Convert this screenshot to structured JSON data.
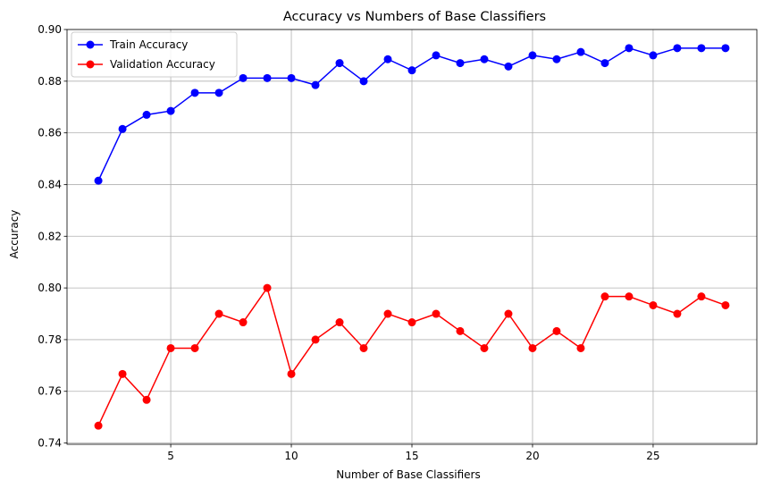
{
  "chart_data": {
    "type": "line",
    "title": "Accuracy vs Numbers of Base Classifiers",
    "xlabel": "Number of Base Classifiers",
    "ylabel": "Accuracy",
    "x": [
      2,
      3,
      4,
      5,
      6,
      7,
      8,
      9,
      10,
      11,
      12,
      13,
      14,
      15,
      16,
      17,
      18,
      19,
      20,
      21,
      22,
      23,
      24,
      25,
      26,
      27,
      28
    ],
    "xlim": [
      0.7,
      29.3
    ],
    "ylim": [
      0.7395,
      0.9
    ],
    "xticks": [
      5,
      10,
      15,
      20,
      25
    ],
    "yticks": [
      0.74,
      0.76,
      0.78,
      0.8,
      0.82,
      0.84,
      0.86,
      0.88,
      0.9
    ],
    "xtick_labels": [
      "5",
      "10",
      "15",
      "20",
      "25"
    ],
    "ytick_labels": [
      "0.74",
      "0.76",
      "0.78",
      "0.80",
      "0.82",
      "0.84",
      "0.86",
      "0.88",
      "0.90"
    ],
    "grid": true,
    "legend_position": "top-left",
    "series": [
      {
        "name": "Train Accuracy",
        "color": "#0000ff",
        "marker": "circle",
        "values": [
          0.8415,
          0.8615,
          0.867,
          0.8685,
          0.8755,
          0.8755,
          0.8812,
          0.8812,
          0.8812,
          0.8785,
          0.887,
          0.88,
          0.8885,
          0.8842,
          0.89,
          0.887,
          0.8885,
          0.8857,
          0.89,
          0.8885,
          0.8913,
          0.887,
          0.8928,
          0.89,
          0.8928,
          0.8928,
          0.8928
        ]
      },
      {
        "name": "Validation Accuracy",
        "color": "#ff0000",
        "marker": "circle",
        "values": [
          0.7467,
          0.7667,
          0.7567,
          0.7767,
          0.7767,
          0.79,
          0.7867,
          0.8,
          0.7667,
          0.78,
          0.7867,
          0.7767,
          0.79,
          0.7867,
          0.79,
          0.7833,
          0.7767,
          0.79,
          0.7767,
          0.7833,
          0.7767,
          0.7967,
          0.7967,
          0.7933,
          0.79,
          0.7967,
          0.7933
        ]
      }
    ]
  }
}
